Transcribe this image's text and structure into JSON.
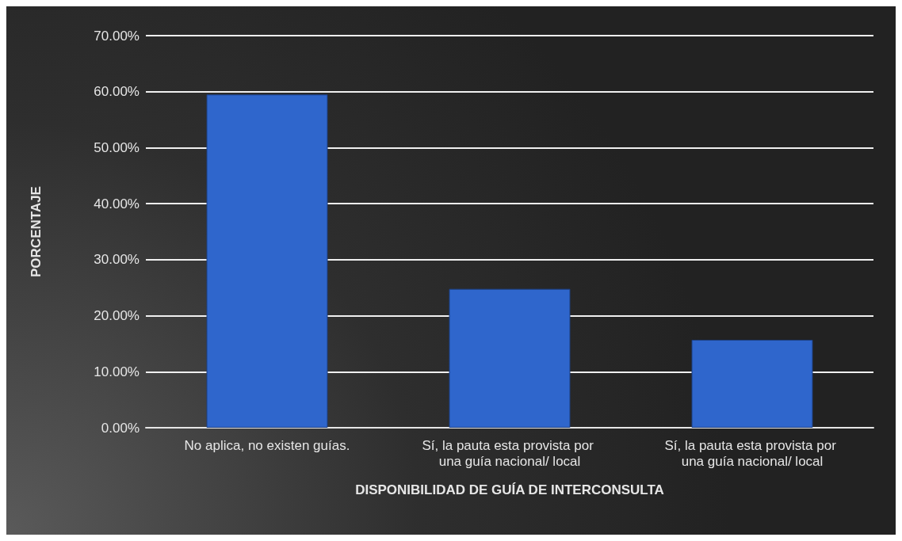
{
  "chart_data": {
    "type": "bar",
    "xlabel": "DISPONIBILIDAD DE GUÍA DE INTERCONSULTA",
    "ylabel": "PORCENTAJE",
    "categories": [
      "No aplica, no existen guías.",
      "Sí, la pauta esta provista por una guía nacional/ local",
      "Sí, la pauta esta provista por una guía nacional/ local"
    ],
    "values": [
      59.5,
      24.8,
      15.7
    ],
    "color": "#2f66cc",
    "ylim": [
      0,
      70
    ],
    "yticks": [
      {
        "value": 0,
        "label": "0.00%"
      },
      {
        "value": 10,
        "label": "10.00%"
      },
      {
        "value": 20,
        "label": "20.00%"
      },
      {
        "value": 30,
        "label": "30.00%"
      },
      {
        "value": 40,
        "label": "40.00%"
      },
      {
        "value": 50,
        "label": "50.00%"
      },
      {
        "value": 60,
        "label": "60.00%"
      },
      {
        "value": 70,
        "label": "70.00%"
      }
    ],
    "grid": "y"
  }
}
